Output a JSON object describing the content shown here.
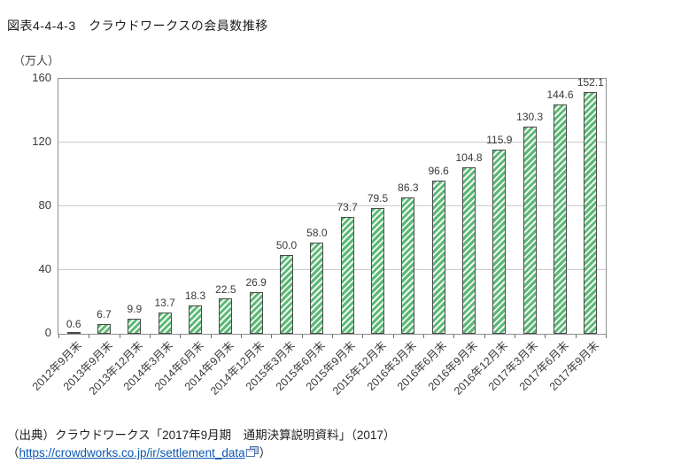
{
  "page": {
    "title": "図表4-4-4-3　クラウドワークスの会員数推移",
    "source": {
      "line1": "（出典）クラウドワークス「2017年9月期　通期決算説明資料」（2017）",
      "link_prefix": "（",
      "link_text": "https://crowdworks.co.jp/ir/settlement_data",
      "link_suffix": "）",
      "external_link_icon": "external-link"
    }
  },
  "chart_data": {
    "type": "bar",
    "title": "クラウドワークスの会員数推移",
    "unit_label": "（万人）",
    "categories": [
      "2012年9月末",
      "2013年9月末",
      "2013年12月末",
      "2014年3月末",
      "2014年6月末",
      "2014年9月末",
      "2014年12月末",
      "2015年3月末",
      "2015年6月末",
      "2015年9月末",
      "2015年12月末",
      "2016年3月末",
      "2016年6月末",
      "2016年9月末",
      "2016年12月末",
      "2017年3月末",
      "2017年6月末",
      "2017年9月末"
    ],
    "values": [
      0.6,
      6.7,
      9.9,
      13.7,
      18.3,
      22.5,
      26.9,
      50.0,
      58.0,
      73.7,
      79.5,
      86.3,
      96.6,
      104.8,
      115.9,
      130.3,
      144.6,
      152.1
    ],
    "value_labels": [
      "0.6",
      "6.7",
      "9.9",
      "13.7",
      "18.3",
      "22.5",
      "26.9",
      "50.0",
      "58.0",
      "73.7",
      "79.5",
      "86.3",
      "96.6",
      "104.8",
      "115.9",
      "130.3",
      "144.6",
      "152.1"
    ],
    "ylim": [
      0,
      160
    ],
    "yticks": [
      0,
      40,
      80,
      120,
      160
    ],
    "grid": "horizontal",
    "legend": "none",
    "bar_style": {
      "hatch": "diagonal-forward",
      "hatch_color": "#5cb876",
      "hatch_bg": "#f2faf4",
      "border_color": "#4a4a4a"
    },
    "colors": {
      "gridline": "#cbcbcb",
      "plot_border": "#8f8f8f",
      "text": "#3a3a3a",
      "link": "#0b57b0"
    }
  }
}
